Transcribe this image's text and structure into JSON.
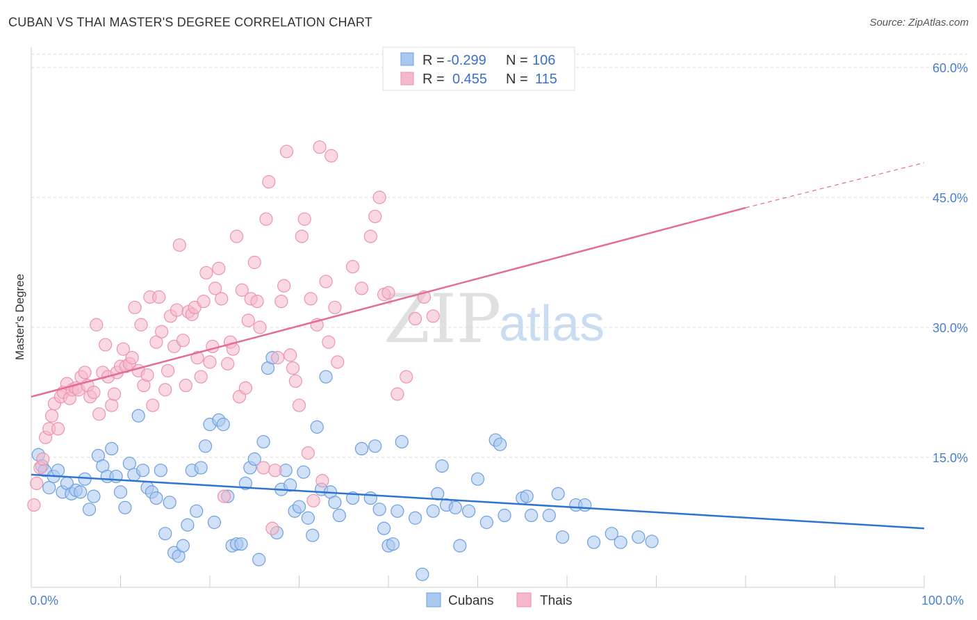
{
  "title": "CUBAN VS THAI MASTER'S DEGREE CORRELATION CHART",
  "source": "Source: ZipAtlas.com",
  "watermark": {
    "zip": "ZIP",
    "atlas": "atlas"
  },
  "legend_top": {
    "rows": [
      {
        "r_label": "R =",
        "r_value": "-0.299",
        "n_label": "N =",
        "n_value": "106"
      },
      {
        "r_label": "R =",
        "r_value": "0.455",
        "n_label": "N =",
        "n_value": "115"
      }
    ]
  },
  "legend_bottom": {
    "cubans": "Cubans",
    "thais": "Thais"
  },
  "colors": {
    "cubans_fill": "#a9c8f0",
    "cubans_stroke": "#6d9fe0",
    "cubans_line": "#2f74d0",
    "thais_fill": "#f5b8cb",
    "thais_stroke": "#ec93b0",
    "thais_line": "#e46c95",
    "tick_text": "#4a7fd0",
    "grid": "#d8d8d8"
  },
  "chart_data": {
    "type": "scatter",
    "title": "CUBAN VS THAI MASTER'S DEGREE CORRELATION CHART",
    "xlabel": "",
    "ylabel": "Master's Degree",
    "xlim": [
      0,
      100
    ],
    "ylim": [
      0,
      62
    ],
    "x_tick_labels": [
      "0.0%",
      "100.0%"
    ],
    "y_ticks": [
      15,
      30,
      45,
      60
    ],
    "y_tick_labels": [
      "15.0%",
      "30.0%",
      "45.0%",
      "60.0%"
    ],
    "grid": true,
    "legend_position": "top-center",
    "series": [
      {
        "name": "Cubans",
        "r": -0.299,
        "n": 106,
        "trend": {
          "x0": 0,
          "y0": 13.0,
          "x1": 100,
          "y1": 6.8
        },
        "points": [
          [
            0.8,
            15.3
          ],
          [
            1.2,
            14.0
          ],
          [
            1.5,
            13.5
          ],
          [
            2.0,
            11.5
          ],
          [
            2.5,
            12.8
          ],
          [
            3.0,
            13.5
          ],
          [
            3.5,
            11.0
          ],
          [
            4.0,
            12.0
          ],
          [
            4.5,
            10.8
          ],
          [
            5.0,
            11.2
          ],
          [
            5.5,
            11.0
          ],
          [
            6.0,
            12.5
          ],
          [
            6.5,
            9.0
          ],
          [
            7.0,
            10.5
          ],
          [
            7.5,
            15.2
          ],
          [
            8.0,
            14.0
          ],
          [
            8.5,
            12.8
          ],
          [
            9.0,
            16.0
          ],
          [
            9.5,
            12.8
          ],
          [
            10.0,
            11.0
          ],
          [
            10.5,
            9.2
          ],
          [
            11.0,
            14.3
          ],
          [
            11.5,
            13.0
          ],
          [
            12.0,
            19.8
          ],
          [
            12.5,
            13.5
          ],
          [
            13.0,
            11.5
          ],
          [
            13.5,
            11.0
          ],
          [
            14.0,
            10.3
          ],
          [
            14.5,
            13.5
          ],
          [
            15.0,
            6.2
          ],
          [
            15.5,
            9.8
          ],
          [
            16.0,
            4.0
          ],
          [
            16.5,
            3.6
          ],
          [
            17.0,
            4.8
          ],
          [
            17.5,
            7.2
          ],
          [
            18.0,
            13.5
          ],
          [
            18.5,
            8.8
          ],
          [
            19.0,
            13.8
          ],
          [
            19.5,
            16.3
          ],
          [
            20.0,
            18.8
          ],
          [
            20.5,
            7.5
          ],
          [
            21.0,
            19.3
          ],
          [
            21.5,
            18.8
          ],
          [
            22.0,
            10.5
          ],
          [
            22.5,
            4.8
          ],
          [
            23.0,
            5.0
          ],
          [
            23.5,
            5.0
          ],
          [
            24.0,
            12.0
          ],
          [
            24.5,
            13.8
          ],
          [
            25.0,
            14.8
          ],
          [
            25.5,
            3.2
          ],
          [
            26.0,
            16.8
          ],
          [
            26.5,
            25.3
          ],
          [
            27.0,
            26.5
          ],
          [
            27.5,
            6.3
          ],
          [
            28.0,
            11.3
          ],
          [
            28.5,
            13.5
          ],
          [
            29.0,
            11.8
          ],
          [
            29.5,
            8.8
          ],
          [
            30.0,
            9.3
          ],
          [
            30.5,
            13.3
          ],
          [
            31.0,
            8.0
          ],
          [
            31.5,
            6.0
          ],
          [
            32.0,
            18.5
          ],
          [
            32.5,
            11.3
          ],
          [
            33.0,
            24.3
          ],
          [
            33.5,
            11.0
          ],
          [
            34.0,
            9.8
          ],
          [
            34.5,
            8.3
          ],
          [
            36.0,
            10.3
          ],
          [
            37.0,
            16.0
          ],
          [
            38.0,
            10.3
          ],
          [
            38.5,
            16.3
          ],
          [
            39.0,
            9.0
          ],
          [
            39.5,
            6.8
          ],
          [
            40.0,
            4.8
          ],
          [
            40.5,
            5.0
          ],
          [
            41.0,
            8.8
          ],
          [
            41.5,
            16.8
          ],
          [
            43.0,
            8.0
          ],
          [
            43.8,
            1.5
          ],
          [
            45.0,
            8.8
          ],
          [
            45.5,
            10.8
          ],
          [
            46.0,
            14.0
          ],
          [
            46.5,
            9.5
          ],
          [
            47.5,
            9.2
          ],
          [
            48.0,
            4.8
          ],
          [
            49.0,
            8.8
          ],
          [
            50.0,
            12.5
          ],
          [
            51.0,
            7.5
          ],
          [
            52.0,
            17.0
          ],
          [
            52.5,
            16.5
          ],
          [
            53.0,
            8.3
          ],
          [
            55.0,
            10.3
          ],
          [
            55.5,
            10.5
          ],
          [
            56.0,
            8.3
          ],
          [
            58.0,
            8.3
          ],
          [
            59.0,
            10.8
          ],
          [
            59.5,
            5.8
          ],
          [
            61.0,
            9.5
          ],
          [
            62.0,
            9.5
          ],
          [
            63.0,
            5.2
          ],
          [
            65.0,
            6.2
          ],
          [
            66.0,
            5.2
          ],
          [
            68.0,
            5.8
          ],
          [
            69.5,
            5.3
          ]
        ]
      },
      {
        "name": "Thais",
        "r": 0.455,
        "n": 115,
        "trend": {
          "x0": 0,
          "y0": 22.0,
          "x1": 80,
          "y1": 43.8
        },
        "trend_dashed_to": {
          "x": 100,
          "y": 49.0
        },
        "points": [
          [
            0.3,
            9.5
          ],
          [
            0.6,
            12.0
          ],
          [
            1.0,
            13.8
          ],
          [
            1.3,
            14.8
          ],
          [
            1.6,
            17.3
          ],
          [
            2.0,
            18.3
          ],
          [
            2.3,
            19.8
          ],
          [
            2.6,
            21.2
          ],
          [
            3.0,
            18.3
          ],
          [
            3.3,
            22.0
          ],
          [
            3.6,
            22.5
          ],
          [
            4.0,
            23.5
          ],
          [
            4.3,
            21.8
          ],
          [
            4.6,
            22.8
          ],
          [
            5.0,
            23.0
          ],
          [
            5.3,
            22.8
          ],
          [
            5.6,
            24.3
          ],
          [
            6.0,
            24.8
          ],
          [
            6.3,
            23.3
          ],
          [
            6.6,
            22.0
          ],
          [
            7.0,
            22.5
          ],
          [
            7.3,
            30.3
          ],
          [
            7.6,
            20.0
          ],
          [
            8.0,
            24.8
          ],
          [
            8.3,
            28.0
          ],
          [
            8.6,
            24.3
          ],
          [
            9.0,
            21.0
          ],
          [
            9.3,
            22.3
          ],
          [
            9.6,
            24.8
          ],
          [
            10.0,
            25.5
          ],
          [
            10.3,
            27.5
          ],
          [
            10.6,
            25.5
          ],
          [
            11.0,
            25.8
          ],
          [
            11.3,
            26.5
          ],
          [
            11.6,
            32.3
          ],
          [
            12.0,
            25.0
          ],
          [
            12.3,
            30.3
          ],
          [
            12.6,
            23.3
          ],
          [
            13.0,
            24.5
          ],
          [
            13.3,
            33.5
          ],
          [
            13.6,
            21.0
          ],
          [
            14.0,
            28.3
          ],
          [
            14.3,
            33.5
          ],
          [
            14.6,
            29.5
          ],
          [
            15.0,
            22.8
          ],
          [
            15.3,
            25.0
          ],
          [
            15.6,
            31.3
          ],
          [
            16.0,
            27.8
          ],
          [
            16.3,
            32.0
          ],
          [
            16.6,
            39.5
          ],
          [
            17.0,
            28.5
          ],
          [
            17.3,
            23.3
          ],
          [
            17.6,
            31.8
          ],
          [
            18.0,
            31.5
          ],
          [
            18.3,
            32.3
          ],
          [
            18.6,
            26.5
          ],
          [
            19.0,
            24.3
          ],
          [
            19.3,
            33.0
          ],
          [
            19.6,
            36.3
          ],
          [
            20.0,
            26.0
          ],
          [
            20.3,
            27.8
          ],
          [
            20.6,
            34.5
          ],
          [
            21.0,
            36.8
          ],
          [
            21.3,
            33.3
          ],
          [
            21.6,
            10.5
          ],
          [
            22.0,
            25.8
          ],
          [
            22.3,
            28.3
          ],
          [
            22.6,
            27.5
          ],
          [
            23.0,
            40.5
          ],
          [
            23.3,
            22.0
          ],
          [
            23.6,
            34.3
          ],
          [
            24.0,
            23.0
          ],
          [
            24.3,
            30.8
          ],
          [
            24.6,
            33.3
          ],
          [
            25.0,
            37.5
          ],
          [
            25.3,
            33.0
          ],
          [
            25.6,
            30.0
          ],
          [
            26.0,
            13.8
          ],
          [
            26.3,
            42.5
          ],
          [
            26.6,
            46.8
          ],
          [
            27.0,
            6.8
          ],
          [
            27.3,
            13.5
          ],
          [
            27.6,
            26.5
          ],
          [
            28.0,
            33.0
          ],
          [
            28.3,
            34.8
          ],
          [
            28.6,
            50.3
          ],
          [
            29.0,
            26.8
          ],
          [
            29.3,
            25.3
          ],
          [
            29.6,
            23.8
          ],
          [
            30.0,
            21.0
          ],
          [
            30.3,
            40.5
          ],
          [
            30.6,
            42.5
          ],
          [
            31.0,
            15.5
          ],
          [
            31.3,
            33.3
          ],
          [
            31.6,
            10.0
          ],
          [
            32.0,
            30.3
          ],
          [
            32.3,
            50.8
          ],
          [
            32.6,
            12.3
          ],
          [
            33.0,
            35.3
          ],
          [
            33.3,
            28.3
          ],
          [
            33.6,
            49.8
          ],
          [
            34.0,
            32.3
          ],
          [
            34.3,
            26.0
          ],
          [
            36.0,
            37.0
          ],
          [
            37.0,
            34.5
          ],
          [
            38.0,
            40.5
          ],
          [
            38.5,
            42.8
          ],
          [
            39.0,
            45.0
          ],
          [
            39.5,
            33.8
          ],
          [
            40.0,
            34.0
          ],
          [
            41.0,
            22.3
          ],
          [
            42.0,
            24.3
          ],
          [
            43.0,
            31.0
          ],
          [
            44.0,
            33.5
          ],
          [
            45.0,
            31.3
          ]
        ]
      }
    ]
  }
}
